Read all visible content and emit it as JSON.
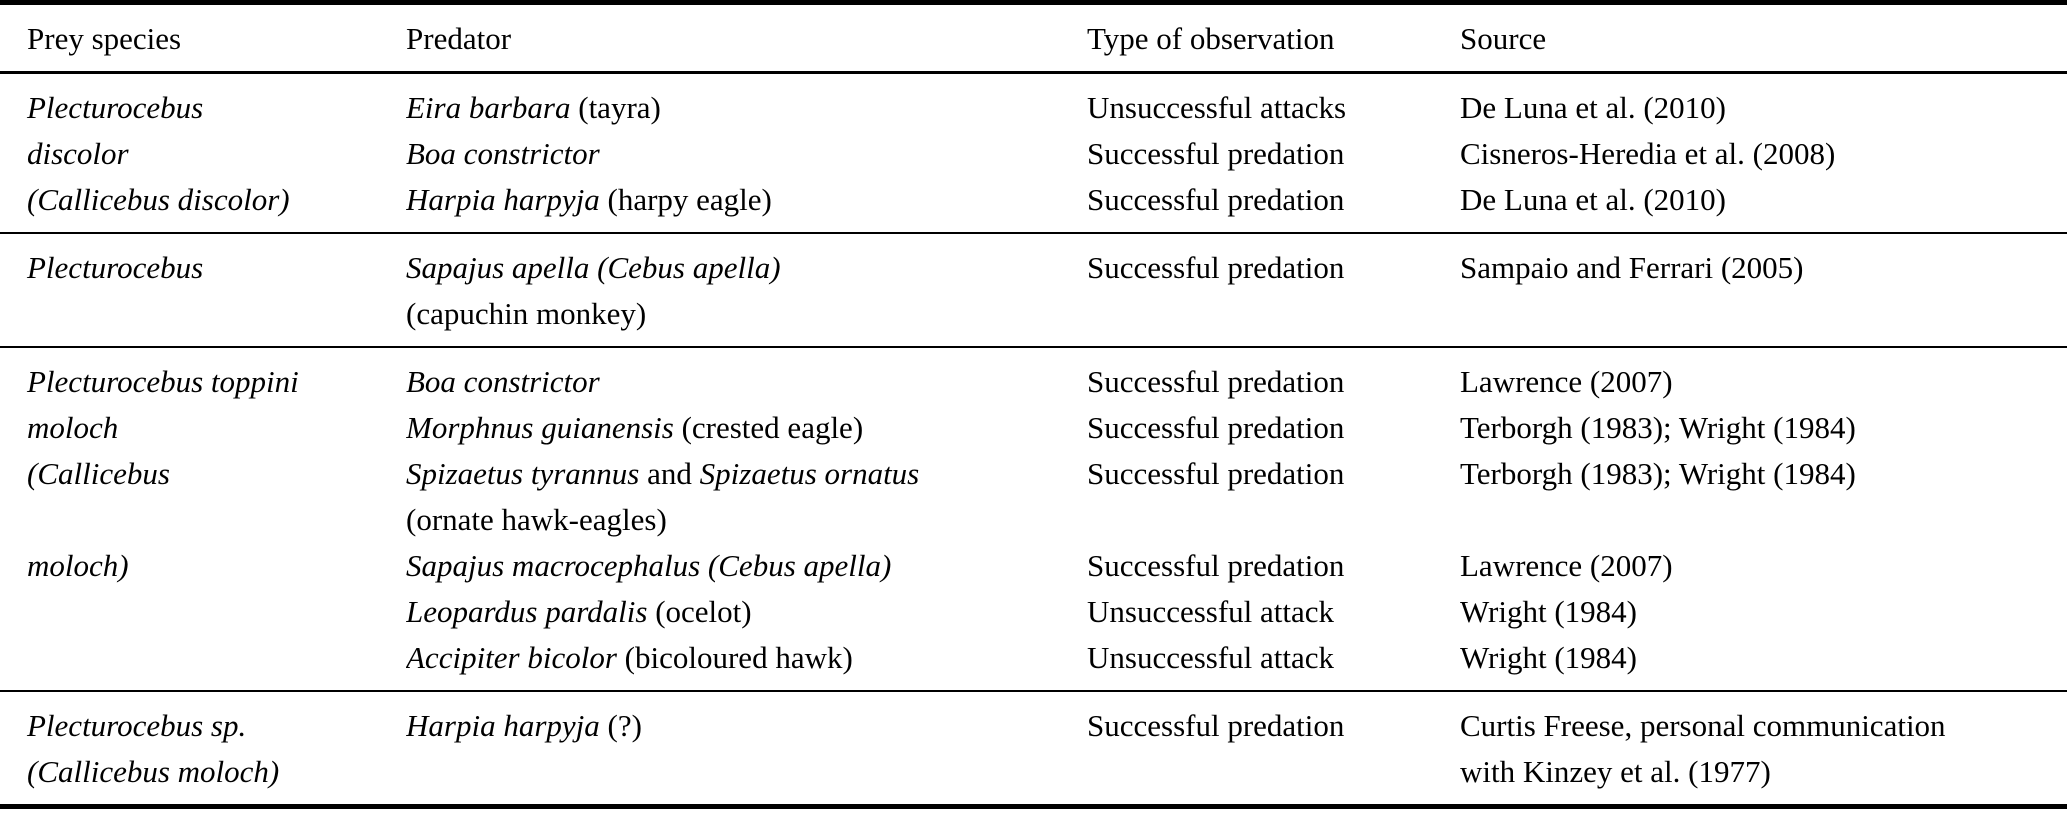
{
  "table": {
    "columns": [
      "Prey species",
      "Predator",
      "Type of observation",
      "Source"
    ],
    "groups": [
      {
        "cells": [
          [
            [
              {
                "t": "Plecturocebus",
                "i": true
              }
            ],
            [
              {
                "t": "discolor",
                "i": true
              }
            ],
            [
              {
                "t": "(Callicebus discolor)",
                "i": true
              }
            ]
          ],
          [
            [
              {
                "t": "Eira barbara",
                "i": true
              },
              {
                "t": " (tayra)"
              }
            ],
            [
              {
                "t": "Boa constrictor",
                "i": true
              }
            ],
            [
              {
                "t": "Harpia harpyja",
                "i": true
              },
              {
                "t": " (harpy eagle)"
              }
            ]
          ],
          [
            [
              {
                "t": "Unsuccessful attacks"
              }
            ],
            [
              {
                "t": "Successful predation"
              }
            ],
            [
              {
                "t": "Successful predation"
              }
            ]
          ],
          [
            [
              {
                "t": "De Luna et al. (2010)"
              }
            ],
            [
              {
                "t": "Cisneros-Heredia et al. (2008)"
              }
            ],
            [
              {
                "t": "De Luna et al. (2010)"
              }
            ]
          ]
        ]
      },
      {
        "cells": [
          [
            [
              {
                "t": "Plecturocebus",
                "i": true
              }
            ]
          ],
          [
            [
              {
                "t": "Sapajus apella (Cebus apella)",
                "i": true
              }
            ],
            [
              {
                "t": "(capuchin monkey)"
              }
            ]
          ],
          [
            [
              {
                "t": "Successful predation"
              }
            ]
          ],
          [
            [
              {
                "t": "Sampaio and Ferrari (2005)"
              }
            ]
          ]
        ]
      },
      {
        "cells": [
          [
            [
              {
                "t": "Plecturocebus toppini",
                "i": true
              }
            ],
            [
              {
                "t": "moloch",
                "i": true
              }
            ],
            [
              {
                "t": "(Callicebus",
                "i": true
              }
            ],
            [],
            [
              {
                "t": "moloch)",
                "i": true
              }
            ]
          ],
          [
            [
              {
                "t": "Boa constrictor",
                "i": true
              }
            ],
            [
              {
                "t": "Morphnus guianensis",
                "i": true
              },
              {
                "t": " (crested eagle)"
              }
            ],
            [
              {
                "t": "Spizaetus tyrannus",
                "i": true
              },
              {
                "t": " and "
              },
              {
                "t": "Spizaetus ornatus",
                "i": true
              }
            ],
            [
              {
                "t": "(ornate hawk-eagles)"
              }
            ],
            [
              {
                "t": "Sapajus macrocephalus (Cebus apella)",
                "i": true
              }
            ],
            [
              {
                "t": "Leopardus pardalis",
                "i": true
              },
              {
                "t": " (ocelot)"
              }
            ],
            [
              {
                "t": "Accipiter bicolor",
                "i": true
              },
              {
                "t": " (bicoloured hawk)"
              }
            ]
          ],
          [
            [
              {
                "t": "Successful predation"
              }
            ],
            [
              {
                "t": "Successful predation"
              }
            ],
            [
              {
                "t": "Successful predation"
              }
            ],
            [],
            [
              {
                "t": "Successful predation"
              }
            ],
            [
              {
                "t": "Unsuccessful attack"
              }
            ],
            [
              {
                "t": "Unsuccessful attack"
              }
            ]
          ],
          [
            [
              {
                "t": "Lawrence (2007)"
              }
            ],
            [
              {
                "t": "Terborgh (1983); Wright (1984)"
              }
            ],
            [
              {
                "t": "Terborgh (1983); Wright (1984)"
              }
            ],
            [],
            [
              {
                "t": "Lawrence (2007)"
              }
            ],
            [
              {
                "t": "Wright (1984)"
              }
            ],
            [
              {
                "t": "Wright (1984)"
              }
            ]
          ]
        ]
      },
      {
        "cells": [
          [
            [
              {
                "t": "Plecturocebus sp.",
                "i": true
              }
            ],
            [
              {
                "t": "(Callicebus moloch)",
                "i": true
              }
            ]
          ],
          [
            [
              {
                "t": "Harpia harpyja",
                "i": true
              },
              {
                "t": " (?)"
              }
            ]
          ],
          [
            [
              {
                "t": "Successful predation"
              }
            ]
          ],
          [
            [
              {
                "t": "Curtis Freese, personal communication"
              }
            ],
            [
              {
                "t": "with Kinzey et al. (1977)"
              }
            ]
          ]
        ]
      }
    ]
  }
}
